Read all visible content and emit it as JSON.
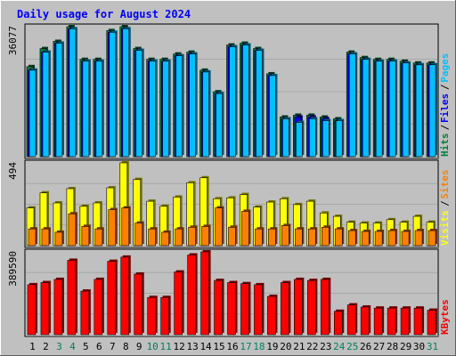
{
  "chart_data": {
    "type": "bar",
    "title": "Daily usage for August 2024",
    "categories": [
      "1",
      "2",
      "3",
      "4",
      "5",
      "6",
      "7",
      "8",
      "9",
      "10",
      "11",
      "12",
      "13",
      "14",
      "15",
      "16",
      "17",
      "18",
      "19",
      "20",
      "21",
      "22",
      "23",
      "24",
      "25",
      "26",
      "27",
      "28",
      "29",
      "30",
      "31"
    ],
    "weekend_days": [
      "3",
      "4",
      "10",
      "11",
      "17",
      "18",
      "24",
      "25",
      "31"
    ],
    "panels": [
      {
        "id": "traffic",
        "max_label": "36077",
        "ylim": [
          0,
          36077
        ],
        "series": [
          {
            "name": "Hits",
            "color": "#008040",
            "values": [
              25000,
              30000,
              32000,
              36077,
              27000,
              27000,
              35000,
              36077,
              30000,
              27000,
              27000,
              28500,
              29000,
              24000,
              18000,
              31000,
              31500,
              30000,
              23000,
              11000,
              11500,
              11500,
              11000,
              10500,
              29000,
              27500,
              27000,
              27000,
              26500,
              26000,
              26000
            ]
          },
          {
            "name": "Files",
            "color": "#0000ff",
            "values": [
              24000,
              29000,
              31500,
              35500,
              26500,
              26500,
              34500,
              35500,
              29500,
              26500,
              26500,
              28000,
              28500,
              23500,
              17500,
              30500,
              31000,
              29500,
              22500,
              10500,
              11000,
              11000,
              10500,
              10000,
              28500,
              27000,
              26500,
              26500,
              26000,
              25500,
              25500
            ]
          },
          {
            "name": "Pages",
            "color": "#00c0ff",
            "values": [
              24000,
              29000,
              31500,
              35500,
              26500,
              26500,
              34500,
              35500,
              29500,
              26500,
              26500,
              28000,
              28500,
              23500,
              17500,
              30500,
              31000,
              29500,
              22500,
              10500,
              9500,
              10500,
              10000,
              10000,
              28500,
              27000,
              26500,
              26500,
              26000,
              25500,
              25500
            ]
          }
        ],
        "legend": [
          {
            "label": "Hits",
            "color": "#008040"
          },
          {
            "label": "Files",
            "color": "#0000ff"
          },
          {
            "label": "Pages",
            "color": "#00c0ff"
          }
        ]
      },
      {
        "id": "visits",
        "max_label": "494",
        "ylim": [
          0,
          494
        ],
        "series": [
          {
            "name": "Visits",
            "color": "#ffff00",
            "values": [
              225,
              315,
              255,
              340,
              235,
              255,
              345,
              494,
              395,
              265,
              235,
              290,
              375,
              405,
              280,
              285,
              305,
              230,
              260,
              280,
              245,
              265,
              195,
              175,
              140,
              135,
              135,
              155,
              140,
              175,
              140
            ]
          },
          {
            "name": "Sites",
            "color": "#ff8000",
            "values": [
              100,
              100,
              80,
              190,
              115,
              100,
              215,
              225,
              135,
              100,
              80,
              100,
              110,
              115,
              225,
              110,
              205,
              100,
              100,
              120,
              100,
              100,
              110,
              100,
              90,
              85,
              85,
              90,
              85,
              90,
              90
            ]
          }
        ],
        "legend": [
          {
            "label": "Visits",
            "color": "#ffff00"
          },
          {
            "label": "Sites",
            "color": "#ff8000"
          }
        ]
      },
      {
        "id": "kbytes",
        "max_label": "389590",
        "ylim": [
          0,
          389590
        ],
        "series": [
          {
            "name": "KBytes",
            "color": "#ff0000",
            "values": [
              235000,
              245000,
              260000,
              350000,
              205000,
              260000,
              345000,
              365000,
              285000,
              175000,
              175000,
              295000,
              375000,
              389590,
              255000,
              245000,
              240000,
              235000,
              180000,
              245000,
              260000,
              255000,
              260000,
              110000,
              140000,
              130000,
              125000,
              125000,
              125000,
              125000,
              115000
            ]
          }
        ],
        "legend": [
          {
            "label": "KBytes",
            "color": "#ff0000"
          }
        ]
      }
    ],
    "grid": true
  }
}
